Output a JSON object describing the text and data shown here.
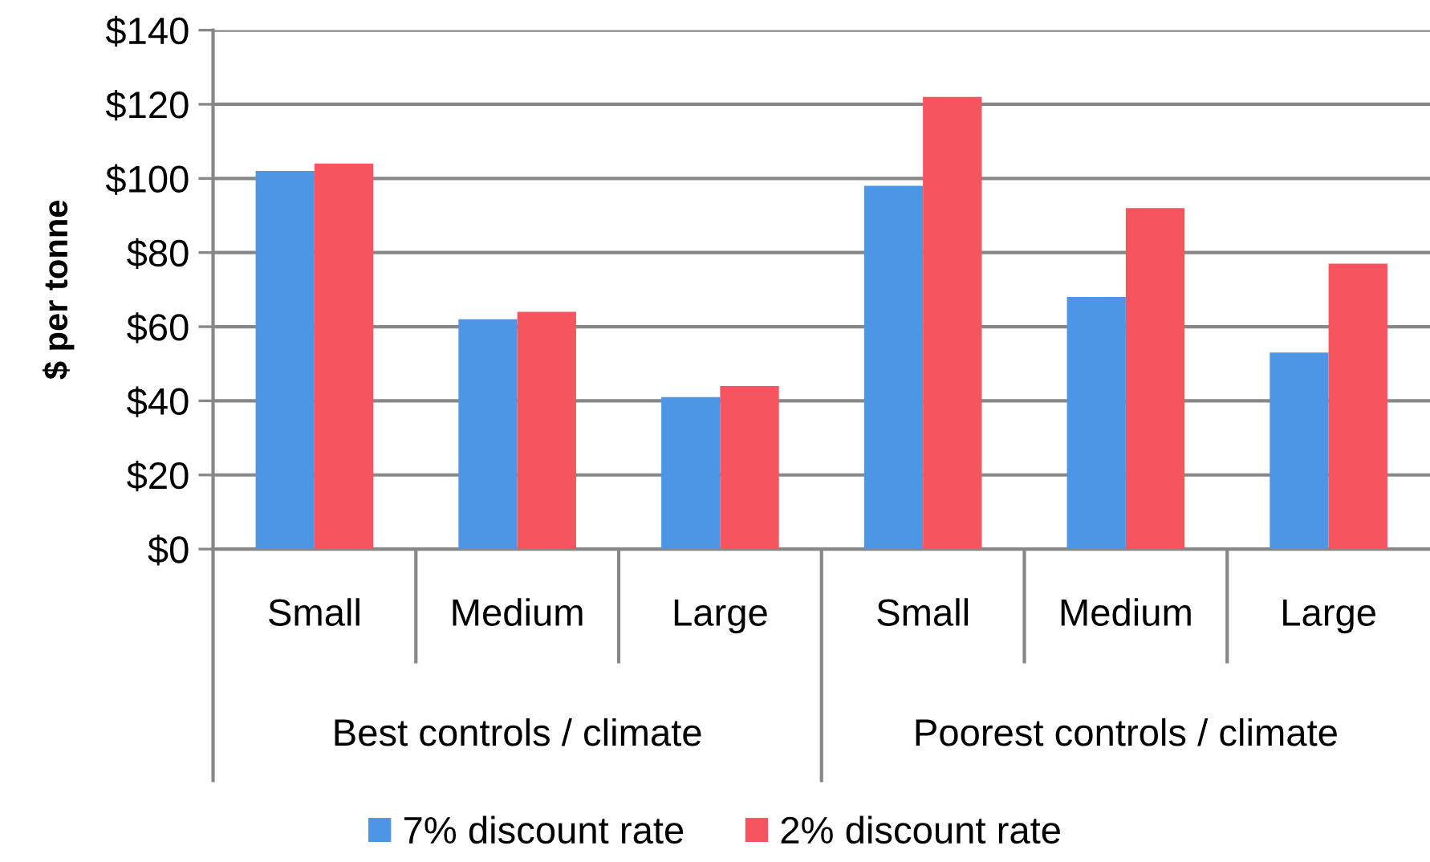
{
  "chart_data": {
    "type": "bar",
    "categories": [
      "Small",
      "Medium",
      "Large",
      "Small",
      "Medium",
      "Large"
    ],
    "annotations": [
      "Best controls / climate",
      "Poorest controls / climate"
    ],
    "ylabel": "$ per tonne",
    "series": [
      {
        "name": "7% discount rate",
        "color": "#4d96e6",
        "values": [
          102,
          62,
          41,
          98,
          68,
          53
        ]
      },
      {
        "name": "2% discount rate",
        "color": "#f6555f",
        "values": [
          104,
          64,
          44,
          122,
          92,
          77
        ]
      }
    ],
    "ylim": [
      0,
      140
    ],
    "yticks": [
      {
        "value": 0,
        "label": "$0"
      },
      {
        "value": 20,
        "label": "$20"
      },
      {
        "value": 40,
        "label": "$40"
      },
      {
        "value": 60,
        "label": "$60"
      },
      {
        "value": 80,
        "label": "$80"
      },
      {
        "value": 100,
        "label": "$100"
      },
      {
        "value": 120,
        "label": "$120"
      },
      {
        "value": 140,
        "label": "$140"
      }
    ],
    "grid": "y",
    "legend": "bottom"
  }
}
